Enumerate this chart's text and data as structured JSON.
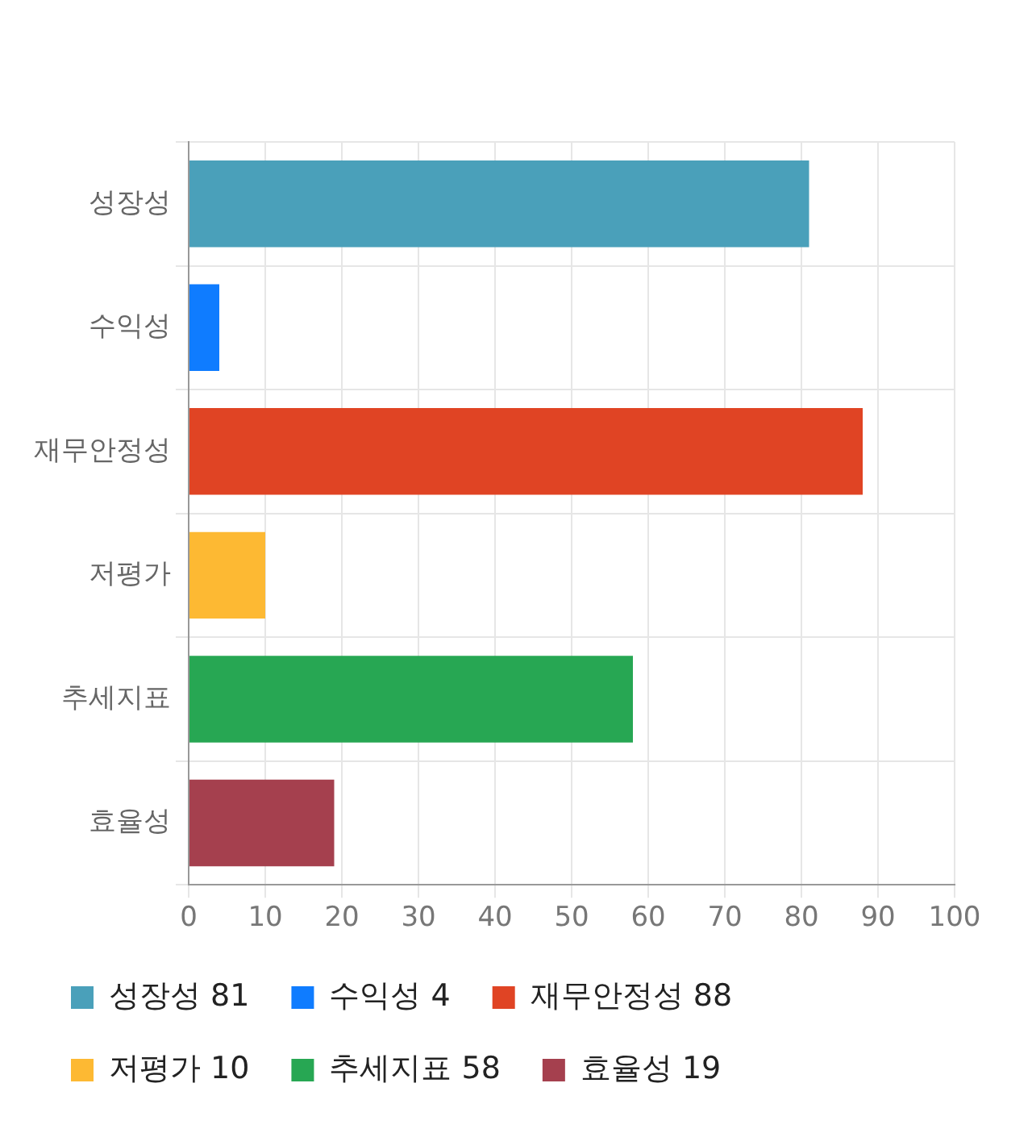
{
  "chart_data": {
    "type": "bar",
    "orientation": "horizontal",
    "stacked": true,
    "categories": [
      "성장성",
      "수익성",
      "재무안정성",
      "저평가",
      "추세지표",
      "효율성"
    ],
    "series": [
      {
        "name": "성장성 81",
        "color": "#4aa0ba",
        "values": [
          81,
          null,
          null,
          null,
          null,
          null
        ]
      },
      {
        "name": "수익성 4",
        "color": "#0f7cff",
        "values": [
          null,
          4,
          null,
          null,
          null,
          null
        ]
      },
      {
        "name": "재무안정성 88",
        "color": "#e04424",
        "values": [
          null,
          null,
          88,
          null,
          null,
          null
        ]
      },
      {
        "name": "저평가 10",
        "color": "#fdb933",
        "values": [
          null,
          null,
          null,
          10,
          null,
          null
        ]
      },
      {
        "name": "추세지표 58",
        "color": "#27a753",
        "values": [
          null,
          null,
          null,
          null,
          58,
          null
        ]
      },
      {
        "name": "효율성 19",
        "color": "#a5404e",
        "values": [
          null,
          null,
          null,
          null,
          null,
          19
        ]
      }
    ],
    "xlim": [
      0,
      100
    ],
    "xticks": [
      0,
      10,
      20,
      30,
      40,
      50,
      60,
      70,
      80,
      90,
      100
    ],
    "grid": true,
    "legend": "bottom"
  }
}
